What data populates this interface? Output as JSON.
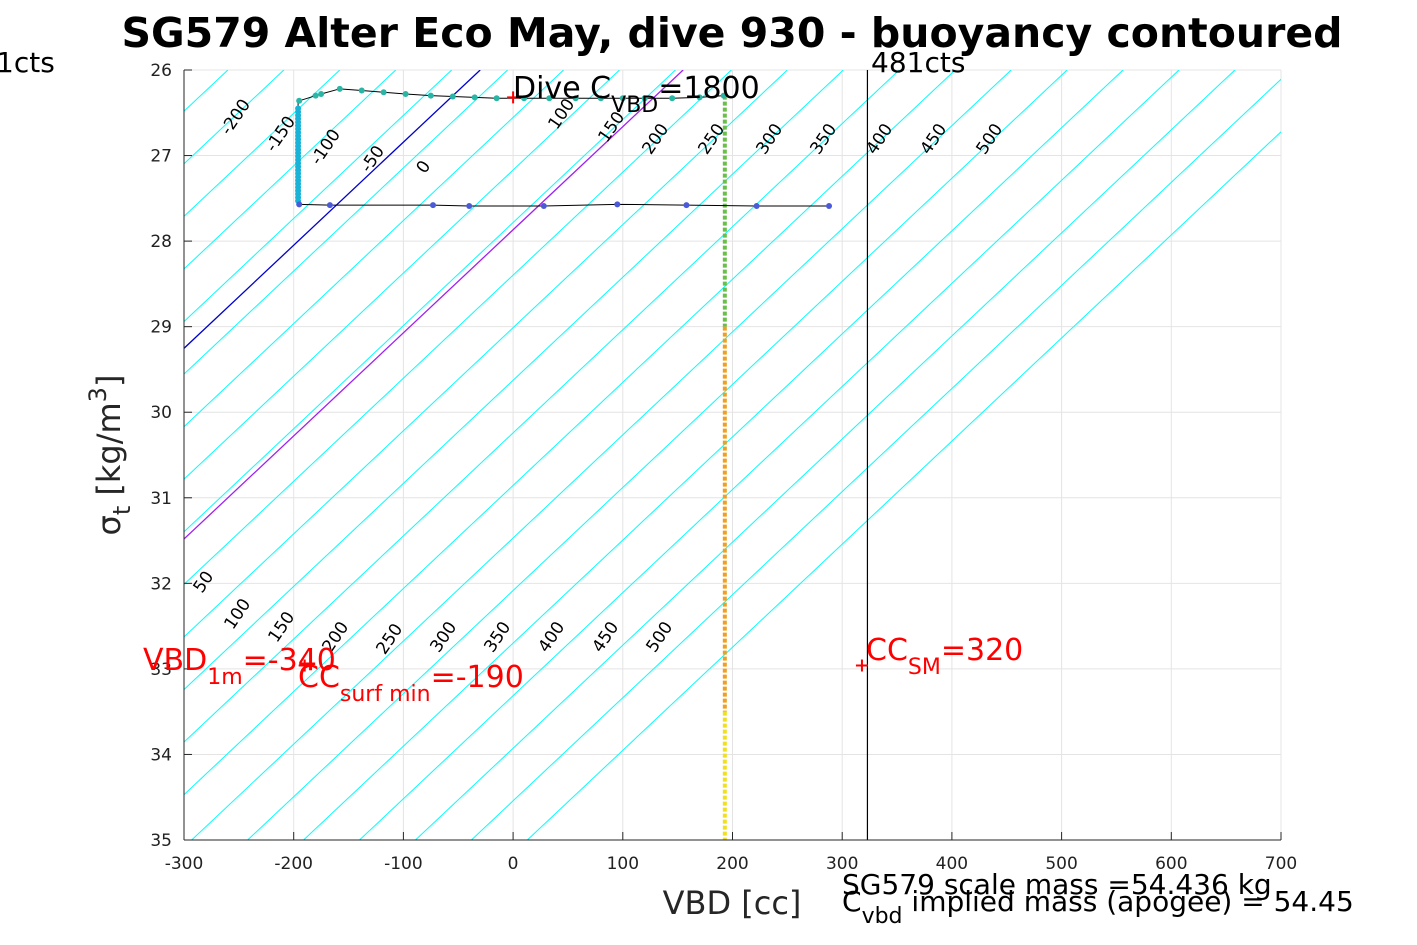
{
  "chart_data": {
    "type": "line",
    "title": "SG579 Alter Eco May, dive 930 - buoyancy contoured",
    "xlabel": "VBD [cc]",
    "ylabel_main": "σ",
    "ylabel_sub": "t",
    "ylabel_unit_a": " [kg/m",
    "ylabel_unit_sup": "3",
    "ylabel_unit_b": "]",
    "xlim": [
      -300,
      700
    ],
    "ylim": [
      26,
      35
    ],
    "y_reversed": true,
    "grid": true,
    "x_ticks": [
      "-300",
      "-200",
      "-100",
      "0",
      "100",
      "200",
      "300",
      "400",
      "500",
      "600",
      "700"
    ],
    "y_ticks": [
      "26",
      "27",
      "28",
      "29",
      "30",
      "31",
      "32",
      "33",
      "34",
      "35"
    ],
    "contour_slope_cc_per_sigma": 83,
    "contours_upper": {
      "color": "#00ffff",
      "levels": [
        -200,
        -150,
        -100,
        -50,
        50,
        100,
        150,
        200,
        250,
        300,
        350,
        400,
        450,
        500
      ],
      "labels": [
        "-200",
        "-150",
        "-100",
        "-50",
        "50",
        "100",
        "150",
        "200",
        "250",
        "300",
        "350",
        "400",
        "450",
        "500"
      ],
      "zero_line": {
        "level": 0,
        "color": "#0000cd",
        "label": "0"
      },
      "special_line": {
        "level": 100,
        "color": "#a020f0"
      }
    },
    "contours_lower_labels": [
      "50",
      "100",
      "150",
      "200",
      "250",
      "300",
      "350",
      "400",
      "450",
      "500"
    ],
    "dive_profile": {
      "color_shallow": "#2bb5a5",
      "color_deep": "#4b5bd8",
      "upper_points": [
        [
          -195,
          26.36
        ],
        [
          -180,
          26.3
        ],
        [
          -175,
          26.28
        ],
        [
          -158,
          26.22
        ],
        [
          -138,
          26.24
        ],
        [
          -118,
          26.26
        ],
        [
          -98,
          26.28
        ],
        [
          -75,
          26.3
        ],
        [
          -55,
          26.31
        ],
        [
          -35,
          26.32
        ],
        [
          -15,
          26.33
        ],
        [
          10,
          26.33
        ],
        [
          33,
          26.33
        ],
        [
          57,
          26.33
        ],
        [
          80,
          26.33
        ],
        [
          100,
          26.33
        ],
        [
          120,
          26.33
        ],
        [
          145,
          26.33
        ],
        [
          170,
          26.32
        ],
        [
          192,
          26.3
        ]
      ],
      "lower_points": [
        [
          -195,
          27.57
        ],
        [
          -167,
          27.58
        ],
        [
          -73,
          27.58
        ],
        [
          -40,
          27.59
        ],
        [
          28,
          27.59
        ],
        [
          95,
          27.57
        ],
        [
          158,
          27.58
        ],
        [
          222,
          27.59
        ],
        [
          288,
          27.59
        ]
      ],
      "vertical_x": -196,
      "vertical_y": [
        26.36,
        27.57
      ],
      "vertical_segment_color": "#1ab3d8"
    },
    "vbd_line": {
      "x": 193,
      "y_from": 26.3,
      "y_to": 35,
      "color_top": "#6abf4b",
      "color_mid": "#f0a020",
      "color_bottom": "#f0e020"
    },
    "black_vline_x": 323,
    "red_markers": [
      {
        "x": 0,
        "y": 26.32
      },
      {
        "x": -190,
        "y": 32.96
      },
      {
        "x": 318,
        "y": 32.96
      }
    ],
    "annotations": {
      "left_cts": "1cts",
      "right_cts": "481cts",
      "dive_c_prefix": "Dive C",
      "dive_c_sub": "VBD",
      "dive_c_value": "=1800",
      "vbd1m_prefix": "VBD",
      "vbd1m_sub": "1m",
      "vbd1m_value": "=-340",
      "ccsurf_prefix": "CC",
      "ccsurf_sub": "surf min",
      "ccsurf_value": "=-190",
      "ccsm_prefix": "CC",
      "ccsm_sub": "SM",
      "ccsm_value": "=320",
      "scale_mass": "SG579 scale mass =54.436 kg",
      "implied_prefix": "C",
      "implied_sub": "vbd",
      "implied_value": " implied mass (apogee) = 54.45"
    }
  },
  "colors": {
    "grid": "#e4e4e4",
    "axis": "#262626",
    "cyan": "#00ffff",
    "blue": "#0000cd",
    "purple": "#a020f0",
    "red": "#ff0000"
  }
}
